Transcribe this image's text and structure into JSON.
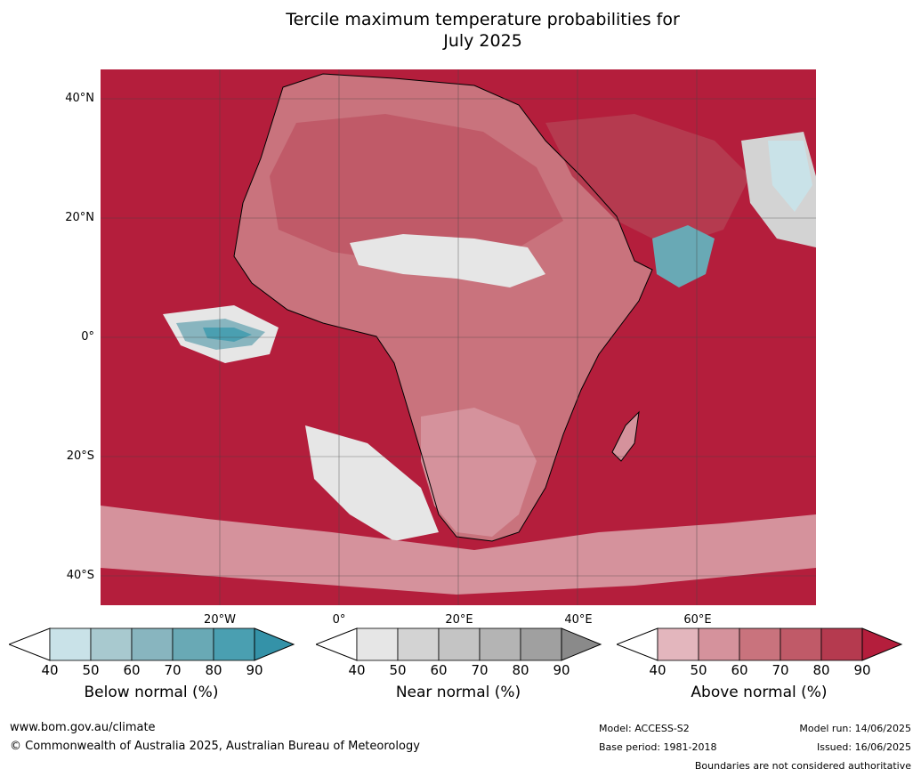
{
  "title_line1": "Tercile maximum temperature probabilities for",
  "title_line2": "July 2025",
  "lat_labels": [
    "40°N",
    "20°N",
    "0°",
    "20°S",
    "40°S"
  ],
  "lon_labels": [
    "20°W",
    "0°",
    "20°E",
    "40°E",
    "60°E"
  ],
  "colorbars": [
    {
      "title": "Below normal (%)",
      "ticks": [
        "40",
        "50",
        "60",
        "70",
        "80",
        "90"
      ],
      "colors": [
        "#c9e2e8",
        "#a8c9cf",
        "#88b5bf",
        "#69a9b5",
        "#4a9fb1"
      ],
      "arrow": "#3492a8"
    },
    {
      "title": "Near normal (%)",
      "ticks": [
        "40",
        "50",
        "60",
        "70",
        "80",
        "90"
      ],
      "colors": [
        "#e6e6e6",
        "#d3d3d3",
        "#c4c4c4",
        "#b4b4b4",
        "#a0a0a0"
      ],
      "arrow": "#8a8a8a"
    },
    {
      "title": "Above normal (%)",
      "ticks": [
        "40",
        "50",
        "60",
        "70",
        "80",
        "90"
      ],
      "colors": [
        "#e3b6bd",
        "#d5929c",
        "#c9737d",
        "#c05a68",
        "#b53a4f"
      ],
      "arrow": "#b41e3c"
    }
  ],
  "footer": {
    "website": "www.bom.gov.au/climate",
    "copyright": "© Commonwealth of Australia 2025, Australian Bureau of Meteorology",
    "model": "Model: ACCESS-S2",
    "base_period": "Base period: 1981-2018",
    "model_run": "Model run: 14/06/2025",
    "issued": "Issued: 16/06/2025",
    "disclaimer": "Boundaries are not considered authoritative"
  },
  "colors": {
    "above_90": "#b41e3c",
    "above_80": "#b53a4f",
    "above_70": "#c05a68",
    "above_60": "#c9737d",
    "near": "#d3d3d3",
    "below": "#4a9fb1"
  }
}
